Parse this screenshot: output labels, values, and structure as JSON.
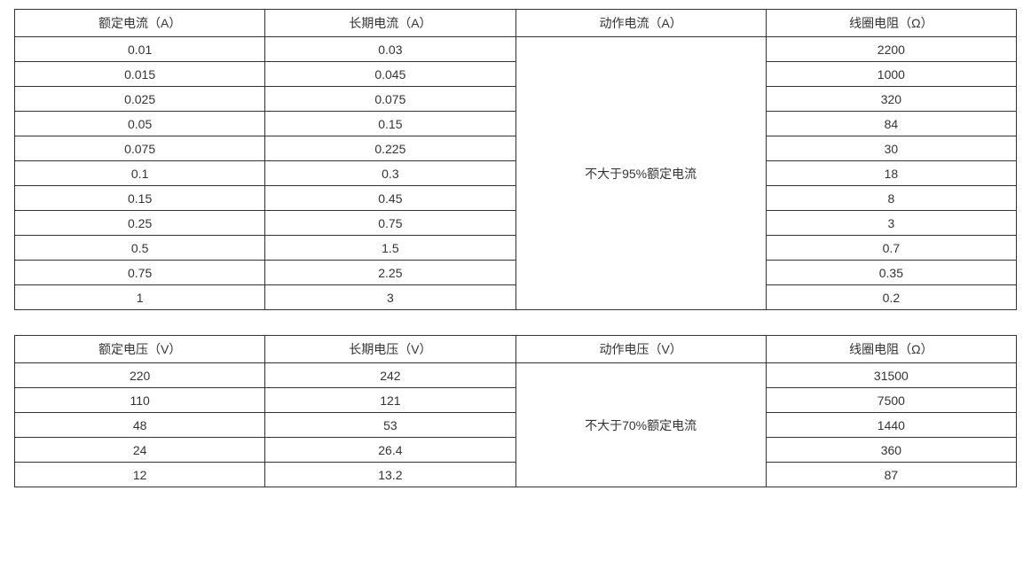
{
  "table1": {
    "type": "table",
    "columns": [
      "额定电流（A）",
      "长期电流（A）",
      "动作电流（A）",
      "线圈电阻（Ω）"
    ],
    "merged_col_index": 2,
    "merged_value": "不大于95%额定电流",
    "rows": [
      [
        "0.01",
        "0.03",
        "2200"
      ],
      [
        "0.015",
        "0.045",
        "1000"
      ],
      [
        "0.025",
        "0.075",
        "320"
      ],
      [
        "0.05",
        "0.15",
        "84"
      ],
      [
        "0.075",
        "0.225",
        "30"
      ],
      [
        "0.1",
        "0.3",
        "18"
      ],
      [
        "0.15",
        "0.45",
        "8"
      ],
      [
        "0.25",
        "0.75",
        "3"
      ],
      [
        "0.5",
        "1.5",
        "0.7"
      ],
      [
        "0.75",
        "2.25",
        "0.35"
      ],
      [
        "1",
        "3",
        "0.2"
      ]
    ],
    "border_color": "#333333",
    "text_color": "#333333",
    "background_color": "#ffffff",
    "font_size": 14
  },
  "table2": {
    "type": "table",
    "columns": [
      "额定电压（V）",
      "长期电压（V）",
      "动作电压（V）",
      "线圈电阻（Ω）"
    ],
    "merged_col_index": 2,
    "merged_value": "不大于70%额定电流",
    "rows": [
      [
        "220",
        "242",
        "31500"
      ],
      [
        "110",
        "121",
        "7500"
      ],
      [
        "48",
        "53",
        "1440"
      ],
      [
        "24",
        "26.4",
        "360"
      ],
      [
        "12",
        "13.2",
        "87"
      ]
    ],
    "border_color": "#333333",
    "text_color": "#333333",
    "background_color": "#ffffff",
    "font_size": 14
  }
}
